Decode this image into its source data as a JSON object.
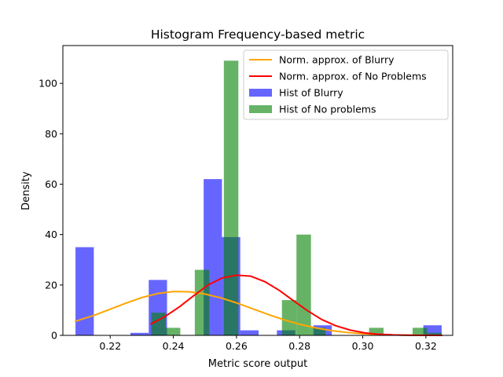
{
  "chart_data": {
    "type": "bar",
    "title": "Histogram Frequency-based metric",
    "xlabel": "Metric score output",
    "ylabel": "Density",
    "xlim": [
      0.205,
      0.3285
    ],
    "ylim": [
      0,
      115
    ],
    "xticks": [
      0.22,
      0.24,
      0.26,
      0.28,
      0.3,
      0.32
    ],
    "yticks": [
      0,
      20,
      40,
      60,
      80,
      100
    ],
    "grid": false,
    "legend_position": "upper right",
    "histograms": [
      {
        "name": "Hist of Blurry",
        "color": "#0000ff",
        "opacity": 0.6,
        "bins": [
          {
            "x0": 0.209,
            "x1": 0.2148,
            "value": 35
          },
          {
            "x0": 0.2264,
            "x1": 0.2322,
            "value": 1
          },
          {
            "x0": 0.2322,
            "x1": 0.238,
            "value": 22
          },
          {
            "x0": 0.2496,
            "x1": 0.2554,
            "value": 62
          },
          {
            "x0": 0.2554,
            "x1": 0.2612,
            "value": 39
          },
          {
            "x0": 0.2612,
            "x1": 0.267,
            "value": 2
          },
          {
            "x0": 0.2728,
            "x1": 0.2786,
            "value": 2
          },
          {
            "x0": 0.2844,
            "x1": 0.2902,
            "value": 4
          },
          {
            "x0": 0.3192,
            "x1": 0.325,
            "value": 4
          }
        ]
      },
      {
        "name": "Hist of No problems",
        "color": "#008000",
        "opacity": 0.6,
        "bins": [
          {
            "x0": 0.233,
            "x1": 0.2376,
            "value": 9
          },
          {
            "x0": 0.2376,
            "x1": 0.2422,
            "value": 3
          },
          {
            "x0": 0.2468,
            "x1": 0.2514,
            "value": 26
          },
          {
            "x0": 0.256,
            "x1": 0.2606,
            "value": 109
          },
          {
            "x0": 0.2744,
            "x1": 0.279,
            "value": 14
          },
          {
            "x0": 0.279,
            "x1": 0.2836,
            "value": 40
          },
          {
            "x0": 0.2836,
            "x1": 0.2882,
            "value": 3
          },
          {
            "x0": 0.302,
            "x1": 0.3066,
            "value": 3
          },
          {
            "x0": 0.3158,
            "x1": 0.3204,
            "value": 3
          },
          {
            "x0": 0.3204,
            "x1": 0.325,
            "value": 1
          }
        ]
      }
    ],
    "series": [
      {
        "name": "Norm. approx. of Blurry",
        "color": "#ffa500",
        "x": [
          0.209,
          0.215,
          0.22,
          0.225,
          0.23,
          0.235,
          0.24,
          0.245,
          0.25,
          0.255,
          0.26,
          0.265,
          0.27,
          0.275,
          0.28,
          0.285,
          0.29,
          0.295,
          0.3,
          0.305,
          0.31,
          0.315,
          0.32,
          0.325
        ],
        "y": [
          5.6,
          8.0,
          10.4,
          12.8,
          15.0,
          16.6,
          17.4,
          17.3,
          16.4,
          14.9,
          12.9,
          10.6,
          8.3,
          6.2,
          4.4,
          3.0,
          1.9,
          1.15,
          0.65,
          0.35,
          0.17,
          0.08,
          0.03,
          0.01
        ]
      },
      {
        "name": "Norm. approx. of No Problems",
        "color": "#ff0000",
        "x": [
          0.233,
          0.2375,
          0.242,
          0.2465,
          0.251,
          0.2555,
          0.26,
          0.2645,
          0.269,
          0.2735,
          0.278,
          0.2825,
          0.287,
          0.2915,
          0.296,
          0.3005,
          0.305,
          0.3095,
          0.314,
          0.3185,
          0.325
        ],
        "y": [
          4.6,
          7.6,
          11.4,
          15.8,
          20.0,
          22.8,
          23.9,
          23.5,
          21.3,
          17.9,
          13.8,
          9.8,
          6.3,
          3.8,
          2.1,
          1.0,
          0.45,
          0.18,
          0.07,
          0.03,
          0.01
        ]
      }
    ],
    "legend": [
      {
        "label": "Norm. approx. of Blurry",
        "kind": "line",
        "color": "#ffa500"
      },
      {
        "label": "Norm. approx. of No Problems",
        "kind": "line",
        "color": "#ff0000"
      },
      {
        "label": "Hist of Blurry",
        "kind": "patch",
        "color": "#0000ff"
      },
      {
        "label": "Hist of No problems",
        "kind": "patch",
        "color": "#008000"
      }
    ]
  }
}
